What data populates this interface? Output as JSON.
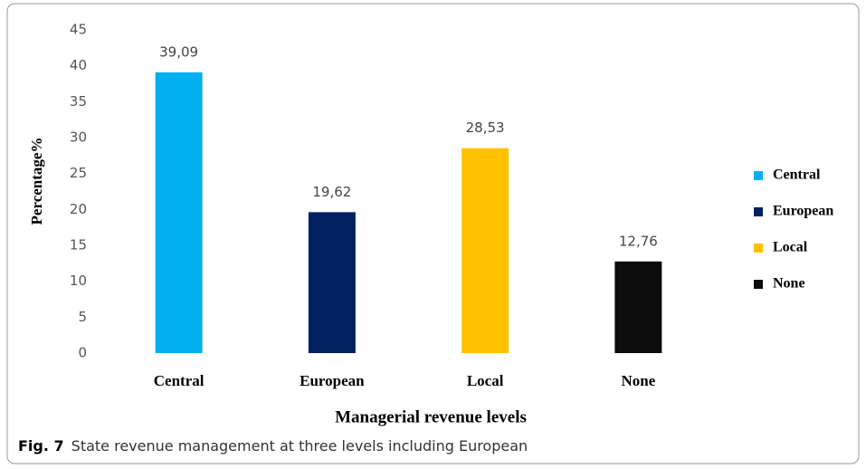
{
  "chart_data": {
    "type": "bar",
    "categories": [
      "Central",
      "European",
      "Local",
      "None"
    ],
    "values": [
      39.09,
      19.62,
      28.53,
      12.76
    ],
    "value_labels": [
      "39,09",
      "19,62",
      "28,53",
      "12,76"
    ],
    "colors": [
      "#00b0f0",
      "#002060",
      "#ffc000",
      "#0d0d0d"
    ],
    "ylim": [
      0,
      45
    ],
    "yticks": [
      0,
      5,
      10,
      15,
      20,
      25,
      30,
      35,
      40,
      45
    ],
    "ylabel": "Percentage%",
    "xlabel": "Managerial revenue levels",
    "legend": "right"
  },
  "caption": {
    "label": "Fig. 7",
    "text": "State revenue management at three levels including European"
  }
}
